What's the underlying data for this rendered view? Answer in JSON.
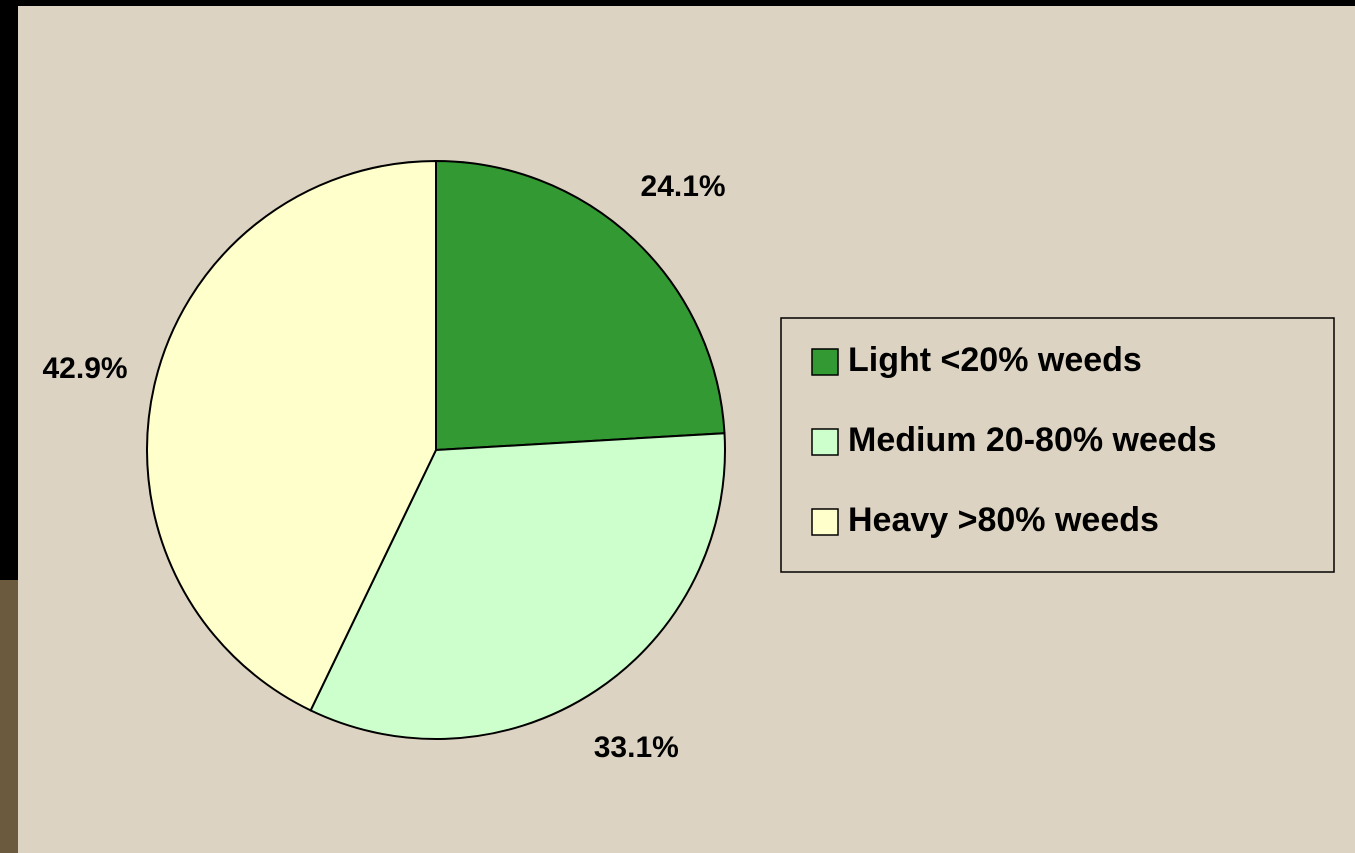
{
  "chart_data": {
    "type": "pie",
    "categories": [
      "Light <20% weeds",
      "Medium 20-80% weeds",
      "Heavy >80% weeds"
    ],
    "values": [
      24.1,
      33.1,
      42.9
    ],
    "value_labels": [
      "24.1%",
      "33.1%",
      "42.9%"
    ],
    "colors": [
      "#339933",
      "#ccffcc",
      "#ffffcc"
    ],
    "legend": "right"
  }
}
